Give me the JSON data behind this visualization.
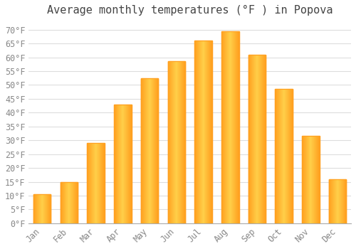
{
  "title": "Average monthly temperatures (°F ) in Popova",
  "months": [
    "Jan",
    "Feb",
    "Mar",
    "Apr",
    "May",
    "Jun",
    "Jul",
    "Aug",
    "Sep",
    "Oct",
    "Nov",
    "Dec"
  ],
  "values": [
    10.5,
    15.0,
    29.0,
    43.0,
    52.5,
    58.5,
    66.0,
    69.5,
    61.0,
    48.5,
    31.5,
    16.0
  ],
  "bar_color_center": "#FFD04A",
  "bar_color_edge": "#FFA020",
  "background_color": "#FFFFFF",
  "plot_bg_color": "#FFFFFF",
  "grid_color": "#DDDDDD",
  "title_color": "#444444",
  "tick_color": "#888888",
  "title_fontsize": 11,
  "tick_fontsize": 8.5,
  "ytick_start": 0,
  "ytick_end": 70,
  "ytick_step": 5,
  "ylim_max": 73
}
